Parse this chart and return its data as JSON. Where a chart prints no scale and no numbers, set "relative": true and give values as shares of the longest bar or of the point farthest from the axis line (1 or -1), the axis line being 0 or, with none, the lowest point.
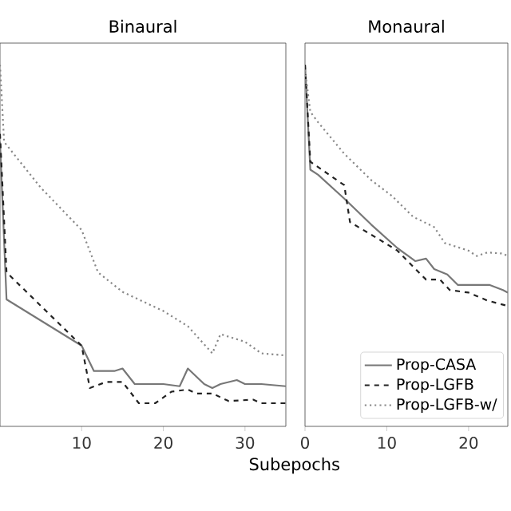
{
  "chart_data": [
    {
      "type": "line",
      "title": "Binaural",
      "xlabel": "Subepochs",
      "relative": true,
      "tick_labels": "x",
      "xlim": [
        0,
        35
      ],
      "xticks": [
        10,
        20,
        30
      ],
      "legend": false,
      "series": [
        {
          "color": "#777777",
          "line_style": "solid",
          "x": [
            0,
            0.8,
            10,
            11.5,
            14,
            15,
            16.5,
            20,
            22,
            23,
            25,
            26,
            27,
            29,
            30,
            32,
            35
          ],
          "values": [
            0.787,
            0.351,
            0.223,
            0.153,
            0.153,
            0.16,
            0.117,
            0.117,
            0.111,
            0.16,
            0.117,
            0.106,
            0.117,
            0.128,
            0.117,
            0.117,
            0.111
          ]
        },
        {
          "color": "#222222",
          "line_style": "dashed",
          "x": [
            0,
            0.8,
            10,
            11,
            13,
            15,
            17,
            19,
            21,
            23,
            24,
            26,
            28,
            31,
            32,
            35
          ],
          "values": [
            0.809,
            0.426,
            0.223,
            0.106,
            0.123,
            0.123,
            0.064,
            0.064,
            0.096,
            0.102,
            0.091,
            0.091,
            0.07,
            0.074,
            0.064,
            0.064
          ]
        },
        {
          "color": "#888888",
          "line_style": "dotted",
          "x": [
            0,
            0.5,
            5,
            10,
            12,
            15,
            20,
            23,
            26,
            27,
            30,
            32,
            35
          ],
          "values": [
            1,
            0.787,
            0.66,
            0.543,
            0.426,
            0.372,
            0.319,
            0.277,
            0.202,
            0.255,
            0.234,
            0.202,
            0.196
          ]
        }
      ]
    },
    {
      "type": "line",
      "title": "Monaural",
      "relative": true,
      "tick_labels": "x",
      "xlim": [
        0,
        24.8
      ],
      "xticks": [
        0,
        10,
        20
      ],
      "legend": "bottom right",
      "series": [
        {
          "name": "Prop-CASA",
          "color": "#777777",
          "line_style": "solid",
          "x": [
            0,
            0.65,
            1.6,
            4.8,
            8.1,
            11.3,
            13.5,
            14.8,
            15.8,
            17.4,
            18.7,
            20,
            22.6,
            24.2,
            24.8
          ],
          "values": [
            1,
            0.71,
            0.696,
            0.63,
            0.558,
            0.493,
            0.457,
            0.464,
            0.435,
            0.42,
            0.391,
            0.391,
            0.391,
            0.377,
            0.37
          ]
        },
        {
          "name": "Prop-LGFB",
          "color": "#222222",
          "line_style": "dashed",
          "x": [
            0,
            0.65,
            4.8,
            5.5,
            8.7,
            11.3,
            13.2,
            14.8,
            16.5,
            17.7,
            20,
            22.3,
            24.8
          ],
          "values": [
            1,
            0.732,
            0.667,
            0.565,
            0.522,
            0.486,
            0.442,
            0.406,
            0.406,
            0.377,
            0.37,
            0.348,
            0.333
          ]
        },
        {
          "name": "Prop-LGFB-w/",
          "color": "#888888",
          "line_style": "dotted",
          "x": [
            0,
            0.65,
            1.6,
            4.8,
            8.1,
            10.6,
            13.2,
            15.8,
            17.1,
            20,
            21,
            22.3,
            24.2,
            24.8
          ],
          "values": [
            0.986,
            0.87,
            0.841,
            0.754,
            0.681,
            0.638,
            0.58,
            0.551,
            0.507,
            0.486,
            0.471,
            0.481,
            0.478,
            0.471
          ]
        }
      ]
    }
  ]
}
